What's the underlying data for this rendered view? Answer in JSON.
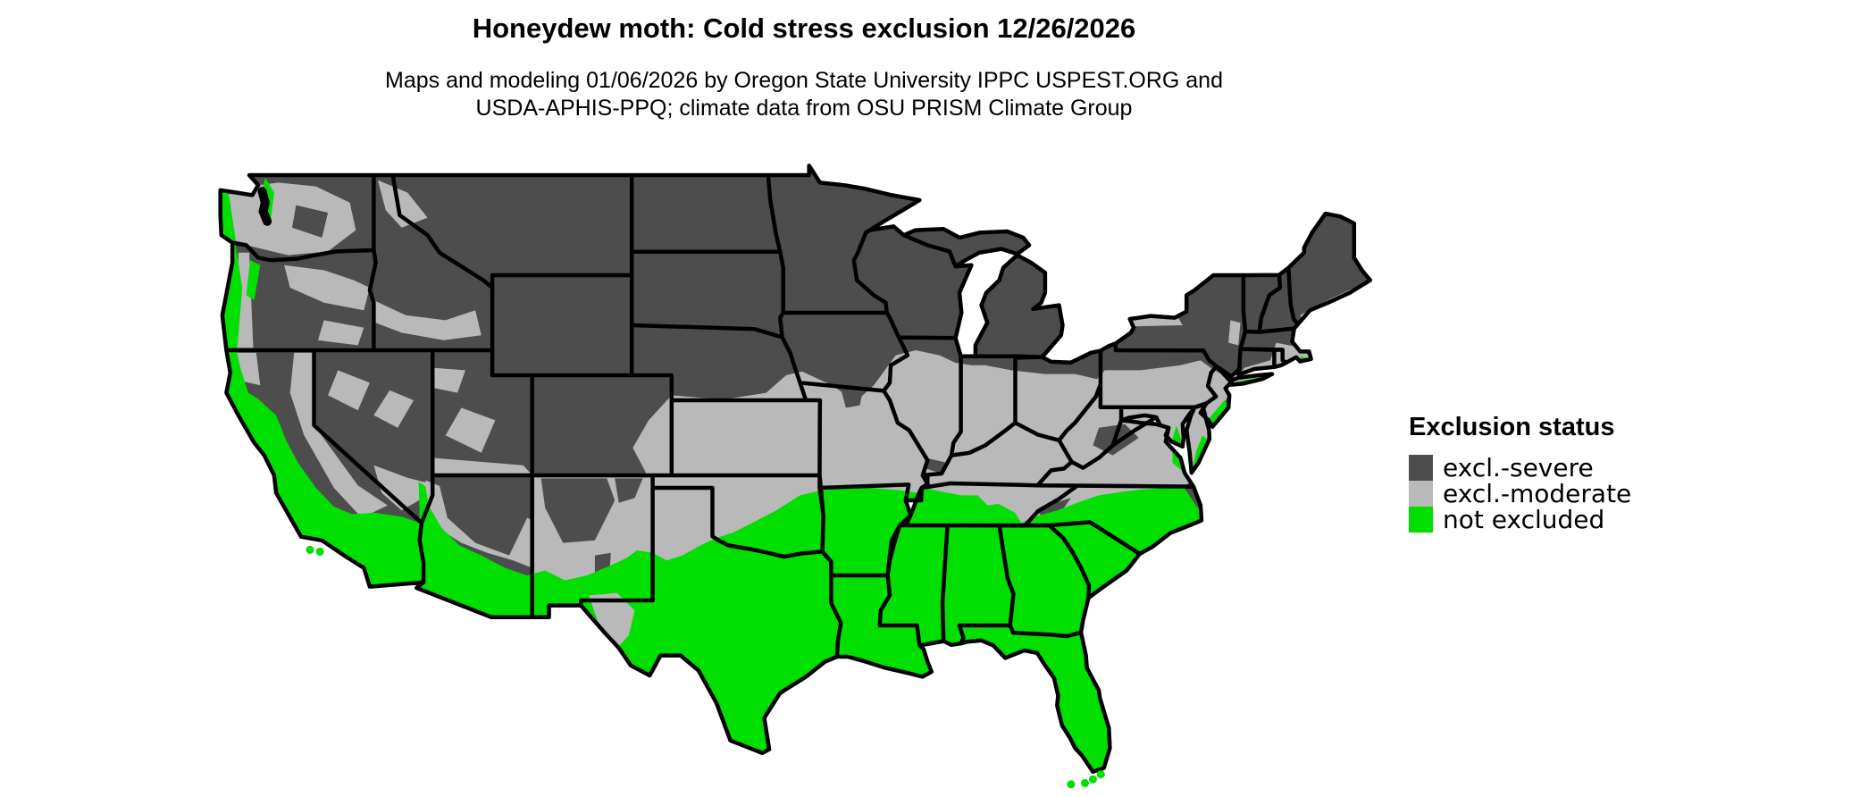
{
  "header": {
    "title": "Honeydew moth: Cold stress exclusion 12/26/2026",
    "subtitle": [
      "Maps and modeling 01/06/2026 by Oregon State University IPPC USPEST.ORG and",
      "USDA-APHIS-PPQ; climate data from OSU PRISM Climate Group"
    ]
  },
  "legend": {
    "title": "Exclusion status",
    "items": [
      {
        "label": "excl.-severe",
        "color": "#4d4d4d"
      },
      {
        "label": "excl.-moderate",
        "color": "#b9b9b9"
      },
      {
        "label": "not excluded",
        "color": "#00df00"
      }
    ]
  },
  "map": {
    "colors": {
      "severe": "#4d4d4d",
      "moderate": "#b9b9b9",
      "not_excluded": "#00df00",
      "border": "#000000",
      "background": "#ffffff"
    }
  }
}
